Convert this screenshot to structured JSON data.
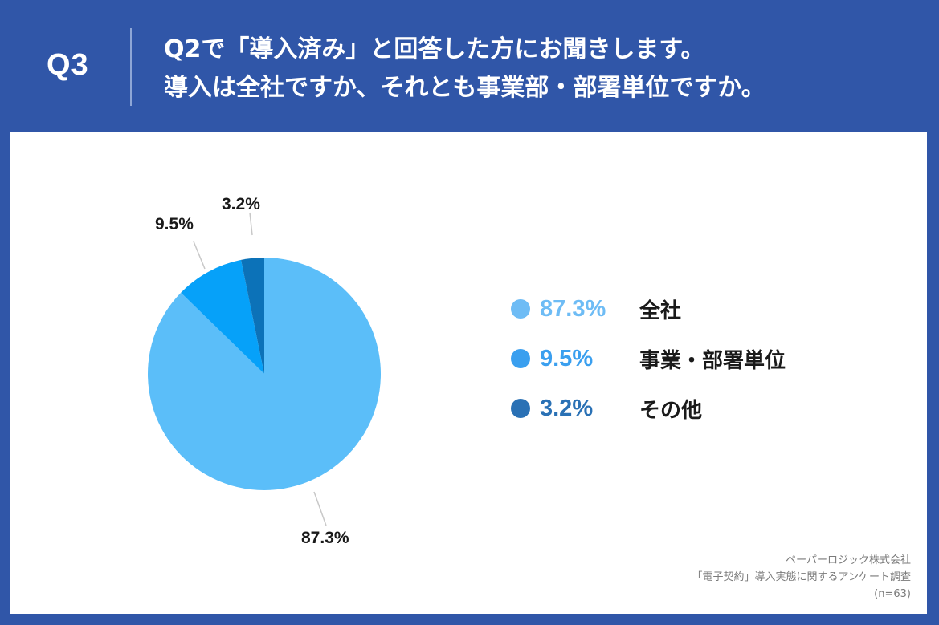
{
  "header": {
    "question_number": "Q3",
    "title_line1": "Q2で「導入済み」と回答した方にお聞きします。",
    "title_line2": "導入は全社ですか、それとも事業部・部署単位ですか。"
  },
  "colors": {
    "background": "#3056A8",
    "panel": "#FFFFFF",
    "slice_all_company": "#5BBEF9",
    "slice_department": "#06A1F9",
    "slice_other": "#0C72B8",
    "legend_dot_all_company": "#6EBCF5",
    "legend_dot_department": "#3A9FEF",
    "legend_dot_other": "#2A71B5"
  },
  "chart_data": {
    "type": "pie",
    "title": "導入は全社ですか、それとも事業部・部署単位ですか。",
    "categories": [
      "全社",
      "事業部・部署単位",
      "その他"
    ],
    "values": [
      87.3,
      9.5,
      3.2
    ],
    "unit": "%",
    "start_angle": "12 o'clock, clockwise",
    "data_labels": [
      "87.3%",
      "9.5%",
      "3.2%"
    ],
    "legend_position": "right",
    "sample_size": "n=63"
  },
  "slice_labels": {
    "all_company": "87.3%",
    "department": "9.5%",
    "other": "3.2%"
  },
  "legend": [
    {
      "pct": "87.3%",
      "label": "全社"
    },
    {
      "pct": "9.5%",
      "label": "事業・部署単位"
    },
    {
      "pct": "3.2%",
      "label": "その他"
    }
  ],
  "source": {
    "company": "ペーパーロジック株式会社",
    "survey": "「電子契約」導入実態に関するアンケート調査",
    "sample": "(n=63)"
  }
}
